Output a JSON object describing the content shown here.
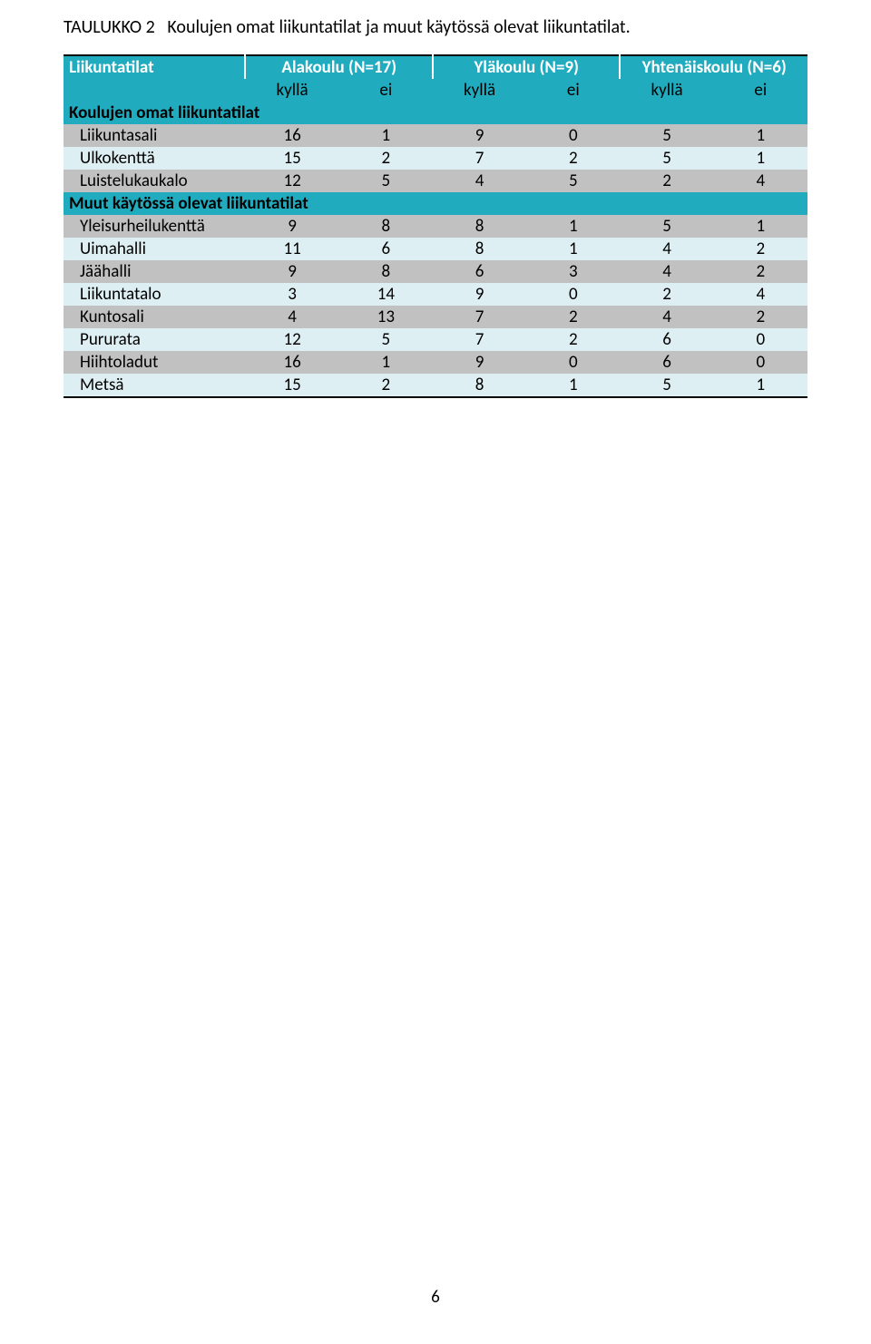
{
  "caption_prefix": "TAULUKKO 2",
  "caption_text": "Koulujen omat liikuntatilat ja muut käytössä olevat liikuntatilat.",
  "colors": {
    "teal": "#21abbe",
    "zebra_light": "#deeff3",
    "zebra_dark": "#c1c1c1",
    "text": "#000000",
    "header_text": "#ffffff",
    "rule": "#000000"
  },
  "header": {
    "col0": "Liikuntatilat",
    "groups": [
      {
        "label": "Alakoulu (N=17)"
      },
      {
        "label": "Yläkoulu (N=9)"
      },
      {
        "label": "Yhtenäiskoulu (N=6)"
      }
    ],
    "sub": [
      "kyllä",
      "ei",
      "kyllä",
      "ei",
      "kyllä",
      "ei"
    ]
  },
  "sections": [
    {
      "title": "Koulujen omat liikuntatilat",
      "rows": [
        {
          "label": "Liikuntasali",
          "cells": [
            16,
            1,
            9,
            0,
            5,
            1
          ],
          "zebra": "dark"
        },
        {
          "label": "Ulkokenttä",
          "cells": [
            15,
            2,
            7,
            2,
            5,
            1
          ],
          "zebra": "light"
        },
        {
          "label": "Luistelukaukalo",
          "cells": [
            12,
            5,
            4,
            5,
            2,
            4
          ],
          "zebra": "dark"
        }
      ]
    },
    {
      "title": "Muut käytössä olevat liikuntatilat",
      "rows": [
        {
          "label": "Yleisurheilukenttä",
          "cells": [
            9,
            8,
            8,
            1,
            5,
            1
          ],
          "zebra": "dark"
        },
        {
          "label": "Uimahalli",
          "cells": [
            11,
            6,
            8,
            1,
            4,
            2
          ],
          "zebra": "light"
        },
        {
          "label": "Jäähalli",
          "cells": [
            9,
            8,
            6,
            3,
            4,
            2
          ],
          "zebra": "dark"
        },
        {
          "label": "Liikuntatalo",
          "cells": [
            3,
            14,
            9,
            0,
            2,
            4
          ],
          "zebra": "light"
        },
        {
          "label": "Kuntosali",
          "cells": [
            4,
            13,
            7,
            2,
            4,
            2
          ],
          "zebra": "dark"
        },
        {
          "label": "Pururata",
          "cells": [
            12,
            5,
            7,
            2,
            6,
            0
          ],
          "zebra": "light"
        },
        {
          "label": "Hiihtoladut",
          "cells": [
            16,
            1,
            9,
            0,
            6,
            0
          ],
          "zebra": "dark"
        },
        {
          "label": "Metsä",
          "cells": [
            15,
            2,
            8,
            1,
            5,
            1
          ],
          "zebra": "light"
        }
      ]
    }
  ],
  "page_number": "6"
}
